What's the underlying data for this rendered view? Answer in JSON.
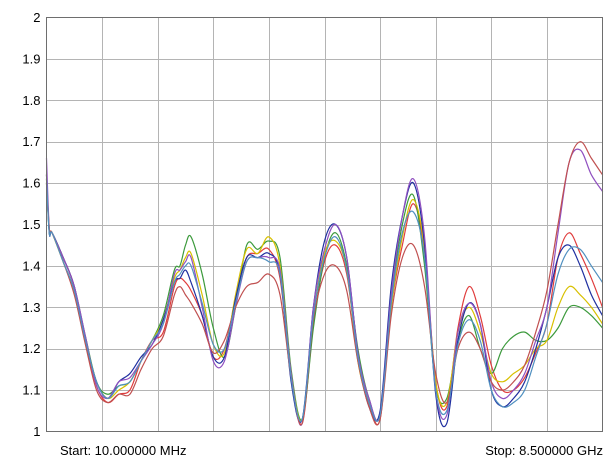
{
  "chart_data": {
    "type": "line",
    "title": "",
    "xlabel": "",
    "ylabel": "",
    "start_label": "Start: 10.000000 MHz",
    "stop_label": "Stop: 8.500000 GHz",
    "x_range": [
      0,
      100
    ],
    "ylim": [
      1,
      2
    ],
    "y_ticks": [
      "1",
      "1.1",
      "1.2",
      "1.3",
      "1.4",
      "1.5",
      "1.6",
      "1.7",
      "1.8",
      "1.9",
      "2"
    ],
    "grid": true,
    "legend": "none",
    "x_divisions": 10,
    "series": [
      {
        "color": "#e03c3c",
        "x": [
          0,
          0.5,
          1,
          3,
          5,
          7,
          9,
          11,
          13,
          15,
          17,
          19,
          21,
          23,
          24,
          25,
          26,
          28,
          30,
          32,
          34,
          36,
          38,
          40,
          42,
          44,
          46,
          48,
          50,
          52,
          54,
          56,
          58,
          60,
          62,
          64,
          66,
          68,
          70,
          72,
          74,
          76,
          78,
          80,
          82,
          84,
          86,
          88,
          90,
          92,
          94,
          96,
          98,
          100
        ],
        "y": [
          1.62,
          1.49,
          1.48,
          1.42,
          1.35,
          1.22,
          1.11,
          1.07,
          1.09,
          1.1,
          1.17,
          1.22,
          1.24,
          1.35,
          1.37,
          1.36,
          1.34,
          1.28,
          1.18,
          1.2,
          1.32,
          1.42,
          1.43,
          1.44,
          1.37,
          1.14,
          1.02,
          1.26,
          1.41,
          1.45,
          1.38,
          1.18,
          1.07,
          1.03,
          1.3,
          1.45,
          1.55,
          1.43,
          1.12,
          1.06,
          1.25,
          1.35,
          1.28,
          1.16,
          1.1,
          1.1,
          1.13,
          1.19,
          1.26,
          1.42,
          1.48,
          1.43,
          1.37,
          1.3
        ]
      },
      {
        "color": "#3c9a3c",
        "x": [
          0,
          0.5,
          1,
          3,
          5,
          7,
          9,
          11,
          13,
          15,
          17,
          19,
          21,
          23,
          24,
          25,
          26,
          28,
          30,
          32,
          34,
          36,
          38,
          40,
          42,
          44,
          46,
          48,
          50,
          52,
          54,
          56,
          58,
          60,
          62,
          64,
          66,
          68,
          70,
          72,
          74,
          76,
          78,
          80,
          82,
          84,
          86,
          88,
          90,
          92,
          94,
          96,
          98,
          100
        ],
        "y": [
          1.6,
          1.48,
          1.48,
          1.42,
          1.35,
          1.23,
          1.12,
          1.09,
          1.11,
          1.12,
          1.17,
          1.22,
          1.28,
          1.39,
          1.4,
          1.45,
          1.47,
          1.38,
          1.25,
          1.18,
          1.3,
          1.45,
          1.44,
          1.46,
          1.42,
          1.15,
          1.03,
          1.25,
          1.42,
          1.48,
          1.4,
          1.2,
          1.08,
          1.04,
          1.32,
          1.5,
          1.57,
          1.4,
          1.11,
          1.08,
          1.22,
          1.28,
          1.2,
          1.14,
          1.2,
          1.23,
          1.24,
          1.22,
          1.22,
          1.25,
          1.3,
          1.3,
          1.28,
          1.25
        ]
      },
      {
        "color": "#d8c000",
        "x": [
          0,
          0.5,
          1,
          3,
          5,
          7,
          9,
          11,
          13,
          15,
          17,
          19,
          21,
          23,
          24,
          25,
          26,
          28,
          30,
          32,
          34,
          36,
          38,
          40,
          42,
          44,
          46,
          48,
          50,
          52,
          54,
          56,
          58,
          60,
          62,
          64,
          66,
          68,
          70,
          72,
          74,
          76,
          78,
          80,
          82,
          84,
          86,
          88,
          90,
          92,
          94,
          96,
          98,
          100
        ],
        "y": [
          1.61,
          1.49,
          1.48,
          1.41,
          1.34,
          1.22,
          1.12,
          1.08,
          1.1,
          1.12,
          1.17,
          1.22,
          1.27,
          1.37,
          1.39,
          1.42,
          1.43,
          1.33,
          1.21,
          1.19,
          1.33,
          1.44,
          1.43,
          1.47,
          1.4,
          1.14,
          1.03,
          1.28,
          1.43,
          1.46,
          1.39,
          1.17,
          1.07,
          1.04,
          1.3,
          1.47,
          1.56,
          1.44,
          1.12,
          1.07,
          1.24,
          1.3,
          1.24,
          1.14,
          1.12,
          1.14,
          1.16,
          1.2,
          1.22,
          1.3,
          1.35,
          1.33,
          1.3,
          1.26
        ]
      },
      {
        "color": "#2030a0",
        "x": [
          0,
          0.5,
          1,
          3,
          5,
          7,
          9,
          11,
          13,
          15,
          17,
          19,
          21,
          23,
          24,
          25,
          26,
          28,
          30,
          32,
          34,
          36,
          38,
          40,
          42,
          44,
          46,
          48,
          50,
          52,
          54,
          56,
          58,
          60,
          62,
          64,
          66,
          68,
          70,
          72,
          74,
          76,
          78,
          80,
          82,
          84,
          86,
          88,
          90,
          92,
          94,
          96,
          98,
          100
        ],
        "y": [
          1.62,
          1.48,
          1.48,
          1.42,
          1.35,
          1.22,
          1.12,
          1.08,
          1.12,
          1.14,
          1.18,
          1.21,
          1.27,
          1.36,
          1.37,
          1.39,
          1.36,
          1.28,
          1.18,
          1.18,
          1.32,
          1.42,
          1.42,
          1.43,
          1.38,
          1.12,
          1.03,
          1.3,
          1.46,
          1.5,
          1.42,
          1.19,
          1.06,
          1.05,
          1.35,
          1.52,
          1.6,
          1.45,
          1.09,
          1.02,
          1.22,
          1.31,
          1.26,
          1.1,
          1.06,
          1.08,
          1.12,
          1.2,
          1.3,
          1.42,
          1.45,
          1.4,
          1.33,
          1.28
        ]
      },
      {
        "color": "#9050c0",
        "x": [
          0,
          0.5,
          1,
          3,
          5,
          7,
          9,
          11,
          13,
          15,
          17,
          19,
          21,
          23,
          24,
          25,
          26,
          28,
          30,
          32,
          34,
          36,
          38,
          40,
          42,
          44,
          46,
          48,
          50,
          52,
          54,
          56,
          58,
          60,
          62,
          64,
          66,
          68,
          70,
          72,
          74,
          76,
          78,
          80,
          82,
          84,
          86,
          88,
          90,
          92,
          94,
          96,
          98,
          100
        ],
        "y": [
          1.66,
          1.49,
          1.48,
          1.42,
          1.35,
          1.23,
          1.11,
          1.08,
          1.12,
          1.13,
          1.17,
          1.21,
          1.26,
          1.38,
          1.39,
          1.41,
          1.42,
          1.3,
          1.17,
          1.17,
          1.3,
          1.41,
          1.42,
          1.42,
          1.39,
          1.14,
          1.02,
          1.3,
          1.44,
          1.5,
          1.42,
          1.19,
          1.08,
          1.04,
          1.33,
          1.52,
          1.61,
          1.47,
          1.1,
          1.04,
          1.24,
          1.31,
          1.26,
          1.12,
          1.08,
          1.1,
          1.14,
          1.22,
          1.3,
          1.48,
          1.65,
          1.68,
          1.62,
          1.58
        ]
      },
      {
        "color": "#c05050",
        "x": [
          0,
          0.5,
          1,
          3,
          5,
          7,
          9,
          11,
          13,
          15,
          17,
          19,
          21,
          23,
          24,
          25,
          26,
          28,
          30,
          32,
          34,
          36,
          38,
          40,
          42,
          44,
          46,
          48,
          50,
          52,
          54,
          56,
          58,
          60,
          62,
          64,
          66,
          68,
          70,
          72,
          74,
          76,
          78,
          80,
          82,
          84,
          86,
          88,
          90,
          92,
          94,
          96,
          98,
          100
        ],
        "y": [
          1.6,
          1.49,
          1.48,
          1.41,
          1.33,
          1.21,
          1.1,
          1.07,
          1.09,
          1.09,
          1.15,
          1.2,
          1.23,
          1.33,
          1.35,
          1.33,
          1.31,
          1.26,
          1.19,
          1.22,
          1.3,
          1.35,
          1.36,
          1.38,
          1.33,
          1.13,
          1.02,
          1.27,
          1.38,
          1.4,
          1.34,
          1.17,
          1.06,
          1.03,
          1.28,
          1.42,
          1.45,
          1.35,
          1.14,
          1.07,
          1.2,
          1.24,
          1.2,
          1.12,
          1.1,
          1.12,
          1.16,
          1.24,
          1.34,
          1.5,
          1.65,
          1.7,
          1.66,
          1.62
        ]
      },
      {
        "color": "#5090c0",
        "x": [
          0,
          0.5,
          1,
          3,
          5,
          7,
          9,
          11,
          13,
          15,
          17,
          19,
          21,
          23,
          24,
          25,
          26,
          28,
          30,
          32,
          34,
          36,
          38,
          40,
          42,
          44,
          46,
          48,
          50,
          52,
          54,
          56,
          58,
          60,
          62,
          64,
          66,
          68,
          70,
          72,
          74,
          76,
          78,
          80,
          82,
          84,
          86,
          88,
          90,
          92,
          94,
          96,
          98,
          100
        ],
        "y": [
          1.61,
          1.48,
          1.48,
          1.41,
          1.34,
          1.22,
          1.12,
          1.08,
          1.11,
          1.12,
          1.17,
          1.22,
          1.26,
          1.36,
          1.38,
          1.4,
          1.4,
          1.31,
          1.21,
          1.2,
          1.31,
          1.41,
          1.42,
          1.41,
          1.38,
          1.13,
          1.03,
          1.28,
          1.42,
          1.47,
          1.39,
          1.18,
          1.07,
          1.04,
          1.31,
          1.48,
          1.53,
          1.42,
          1.1,
          1.05,
          1.21,
          1.27,
          1.22,
          1.1,
          1.06,
          1.07,
          1.1,
          1.18,
          1.26,
          1.38,
          1.44,
          1.44,
          1.4,
          1.36
        ]
      }
    ]
  }
}
